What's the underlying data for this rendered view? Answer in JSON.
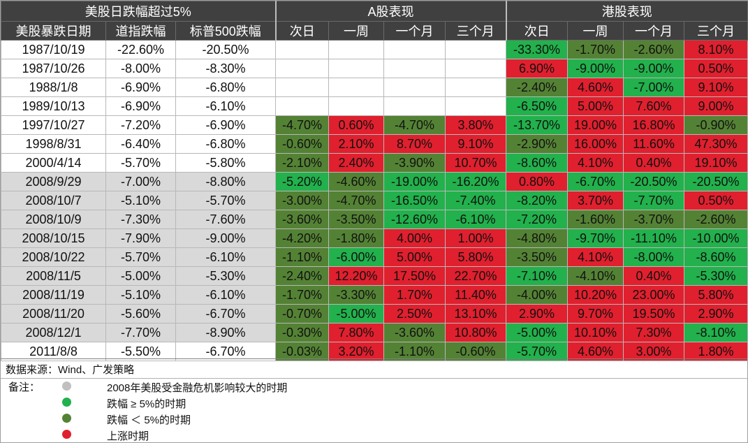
{
  "header": {
    "us_group": "美股日跌幅超过5%",
    "a_group": "A股表现",
    "hk_group": "港股表现",
    "columns": [
      "美股暴跌日期",
      "道指跌幅",
      "标普500跌幅",
      "次日",
      "一周",
      "一个月",
      "三个月",
      "次日",
      "一周",
      "一个月",
      "三个月"
    ]
  },
  "colors": {
    "gray": "#d9d9d9",
    "dark_green": "#548235",
    "light_green": "#22b14c",
    "red": "#e0202e"
  },
  "rows": [
    {
      "date": "1987/10/19",
      "dow": "-22.60%",
      "sp": "-20.50%",
      "gray": false,
      "a": [],
      "hk": [
        [
          "-33.30%",
          "lg"
        ],
        [
          "-1.70%",
          "dg"
        ],
        [
          "-2.60%",
          "dg"
        ],
        [
          "8.10%",
          "r"
        ]
      ]
    },
    {
      "date": "1987/10/26",
      "dow": "-8.00%",
      "sp": "-8.30%",
      "gray": false,
      "a": [],
      "hk": [
        [
          "6.90%",
          "r"
        ],
        [
          "-9.00%",
          "lg"
        ],
        [
          "-9.00%",
          "lg"
        ],
        [
          "0.50%",
          "r"
        ]
      ]
    },
    {
      "date": "1988/1/8",
      "dow": "-6.90%",
      "sp": "-6.80%",
      "gray": false,
      "a": [],
      "hk": [
        [
          "-2.40%",
          "dg"
        ],
        [
          "4.60%",
          "r"
        ],
        [
          "-7.00%",
          "lg"
        ],
        [
          "9.10%",
          "r"
        ]
      ]
    },
    {
      "date": "1989/10/13",
      "dow": "-6.90%",
      "sp": "-6.10%",
      "gray": false,
      "a": [],
      "hk": [
        [
          "-6.50%",
          "lg"
        ],
        [
          "5.00%",
          "r"
        ],
        [
          "7.60%",
          "r"
        ],
        [
          "9.00%",
          "r"
        ]
      ]
    },
    {
      "date": "1997/10/27",
      "dow": "-7.20%",
      "sp": "-6.90%",
      "gray": false,
      "a": [
        [
          "-4.70%",
          "dg"
        ],
        [
          "0.60%",
          "r"
        ],
        [
          "-4.70%",
          "dg"
        ],
        [
          "3.80%",
          "r"
        ]
      ],
      "hk": [
        [
          "-13.70%",
          "lg"
        ],
        [
          "19.00%",
          "r"
        ],
        [
          "16.80%",
          "r"
        ],
        [
          "-0.90%",
          "dg"
        ]
      ]
    },
    {
      "date": "1998/8/31",
      "dow": "-6.40%",
      "sp": "-6.80%",
      "gray": false,
      "a": [
        [
          "-0.60%",
          "dg"
        ],
        [
          "2.10%",
          "r"
        ],
        [
          "8.70%",
          "r"
        ],
        [
          "9.10%",
          "r"
        ]
      ],
      "hk": [
        [
          "-2.90%",
          "dg"
        ],
        [
          "16.00%",
          "r"
        ],
        [
          "11.60%",
          "r"
        ],
        [
          "47.30%",
          "r"
        ]
      ]
    },
    {
      "date": "2000/4/14",
      "dow": "-5.70%",
      "sp": "-5.80%",
      "gray": false,
      "a": [
        [
          "-2.10%",
          "dg"
        ],
        [
          "2.40%",
          "r"
        ],
        [
          "-3.90%",
          "dg"
        ],
        [
          "10.70%",
          "r"
        ]
      ],
      "hk": [
        [
          "-8.60%",
          "lg"
        ],
        [
          "4.10%",
          "r"
        ],
        [
          "0.40%",
          "r"
        ],
        [
          "19.10%",
          "r"
        ]
      ]
    },
    {
      "date": "2008/9/29",
      "dow": "-7.00%",
      "sp": "-8.80%",
      "gray": true,
      "a": [
        [
          "-5.20%",
          "lg"
        ],
        [
          "-4.60%",
          "dg"
        ],
        [
          "-19.00%",
          "lg"
        ],
        [
          "-16.20%",
          "lg"
        ]
      ],
      "hk": [
        [
          "0.80%",
          "r"
        ],
        [
          "-6.70%",
          "lg"
        ],
        [
          "-20.50%",
          "lg"
        ],
        [
          "-20.50%",
          "lg"
        ]
      ]
    },
    {
      "date": "2008/10/7",
      "dow": "-5.10%",
      "sp": "-5.70%",
      "gray": true,
      "a": [
        [
          "-3.00%",
          "dg"
        ],
        [
          "-4.70%",
          "dg"
        ],
        [
          "-16.50%",
          "lg"
        ],
        [
          "-7.40%",
          "lg"
        ]
      ],
      "hk": [
        [
          "-8.20%",
          "lg"
        ],
        [
          "3.70%",
          "r"
        ],
        [
          "-7.70%",
          "lg"
        ],
        [
          "0.50%",
          "r"
        ]
      ]
    },
    {
      "date": "2008/10/9",
      "dow": "-7.30%",
      "sp": "-7.60%",
      "gray": true,
      "a": [
        [
          "-3.60%",
          "dg"
        ],
        [
          "-3.50%",
          "dg"
        ],
        [
          "-12.60%",
          "lg"
        ],
        [
          "-6.10%",
          "lg"
        ]
      ],
      "hk": [
        [
          "-7.20%",
          "lg"
        ],
        [
          "-1.60%",
          "dg"
        ],
        [
          "-3.70%",
          "dg"
        ],
        [
          "-2.60%",
          "dg"
        ]
      ]
    },
    {
      "date": "2008/10/15",
      "dow": "-7.90%",
      "sp": "-9.00%",
      "gray": true,
      "a": [
        [
          "-4.20%",
          "dg"
        ],
        [
          "-1.80%",
          "dg"
        ],
        [
          "4.00%",
          "r"
        ],
        [
          "1.00%",
          "r"
        ]
      ],
      "hk": [
        [
          "-4.80%",
          "dg"
        ],
        [
          "-9.70%",
          "lg"
        ],
        [
          "-11.10%",
          "lg"
        ],
        [
          "-10.00%",
          "lg"
        ]
      ]
    },
    {
      "date": "2008/10/22",
      "dow": "-5.70%",
      "sp": "-6.10%",
      "gray": true,
      "a": [
        [
          "-1.10%",
          "dg"
        ],
        [
          "-6.00%",
          "lg"
        ],
        [
          "5.00%",
          "r"
        ],
        [
          "5.80%",
          "r"
        ]
      ],
      "hk": [
        [
          "-3.50%",
          "dg"
        ],
        [
          "4.10%",
          "r"
        ],
        [
          "-8.00%",
          "lg"
        ],
        [
          "-8.60%",
          "lg"
        ]
      ]
    },
    {
      "date": "2008/11/5",
      "dow": "-5.00%",
      "sp": "-5.30%",
      "gray": true,
      "a": [
        [
          "-2.40%",
          "dg"
        ],
        [
          "12.20%",
          "r"
        ],
        [
          "17.50%",
          "r"
        ],
        [
          "22.70%",
          "r"
        ]
      ],
      "hk": [
        [
          "-7.10%",
          "lg"
        ],
        [
          "-4.10%",
          "dg"
        ],
        [
          "0.40%",
          "r"
        ],
        [
          "-5.30%",
          "lg"
        ]
      ]
    },
    {
      "date": "2008/11/19",
      "dow": "-5.10%",
      "sp": "-6.10%",
      "gray": true,
      "a": [
        [
          "-1.70%",
          "dg"
        ],
        [
          "-3.30%",
          "dg"
        ],
        [
          "1.70%",
          "r"
        ],
        [
          "11.40%",
          "r"
        ]
      ],
      "hk": [
        [
          "-4.00%",
          "dg"
        ],
        [
          "10.20%",
          "r"
        ],
        [
          "23.00%",
          "r"
        ],
        [
          "5.80%",
          "r"
        ]
      ]
    },
    {
      "date": "2008/11/20",
      "dow": "-5.60%",
      "sp": "-6.70%",
      "gray": true,
      "a": [
        [
          "-0.70%",
          "dg"
        ],
        [
          "-5.00%",
          "lg"
        ],
        [
          "2.50%",
          "r"
        ],
        [
          "13.10%",
          "r"
        ]
      ],
      "hk": [
        [
          "2.90%",
          "r"
        ],
        [
          "9.70%",
          "r"
        ],
        [
          "19.50%",
          "r"
        ],
        [
          "2.90%",
          "r"
        ]
      ]
    },
    {
      "date": "2008/12/1",
      "dow": "-7.70%",
      "sp": "-8.90%",
      "gray": true,
      "a": [
        [
          "-0.30%",
          "dg"
        ],
        [
          "7.80%",
          "r"
        ],
        [
          "-3.60%",
          "dg"
        ],
        [
          "10.80%",
          "r"
        ]
      ],
      "hk": [
        [
          "-5.00%",
          "lg"
        ],
        [
          "10.10%",
          "r"
        ],
        [
          "7.30%",
          "r"
        ],
        [
          "-8.10%",
          "lg"
        ]
      ]
    },
    {
      "date": "2011/8/8",
      "dow": "-5.50%",
      "sp": "-6.70%",
      "gray": false,
      "a": [
        [
          "-0.03%",
          "dg"
        ],
        [
          "3.20%",
          "r"
        ],
        [
          "-1.10%",
          "dg"
        ],
        [
          "-0.60%",
          "dg"
        ]
      ],
      "hk": [
        [
          "-5.70%",
          "lg"
        ],
        [
          "4.60%",
          "r"
        ],
        [
          "3.00%",
          "r"
        ],
        [
          "1.80%",
          "r"
        ]
      ]
    }
  ],
  "notes": {
    "source": "数据来源：Wind、广发策略",
    "label": "备注：",
    "legend": [
      {
        "text": "2008年美股受金融危机影响较大的时期",
        "color": "#c0c0c0"
      },
      {
        "text": "跌幅 ≥ 5%的时期",
        "color": "#22b14c"
      },
      {
        "text": "跌幅 ＜ 5%的时期",
        "color": "#548235"
      },
      {
        "text": "上涨时期",
        "color": "#e0202e"
      }
    ]
  }
}
